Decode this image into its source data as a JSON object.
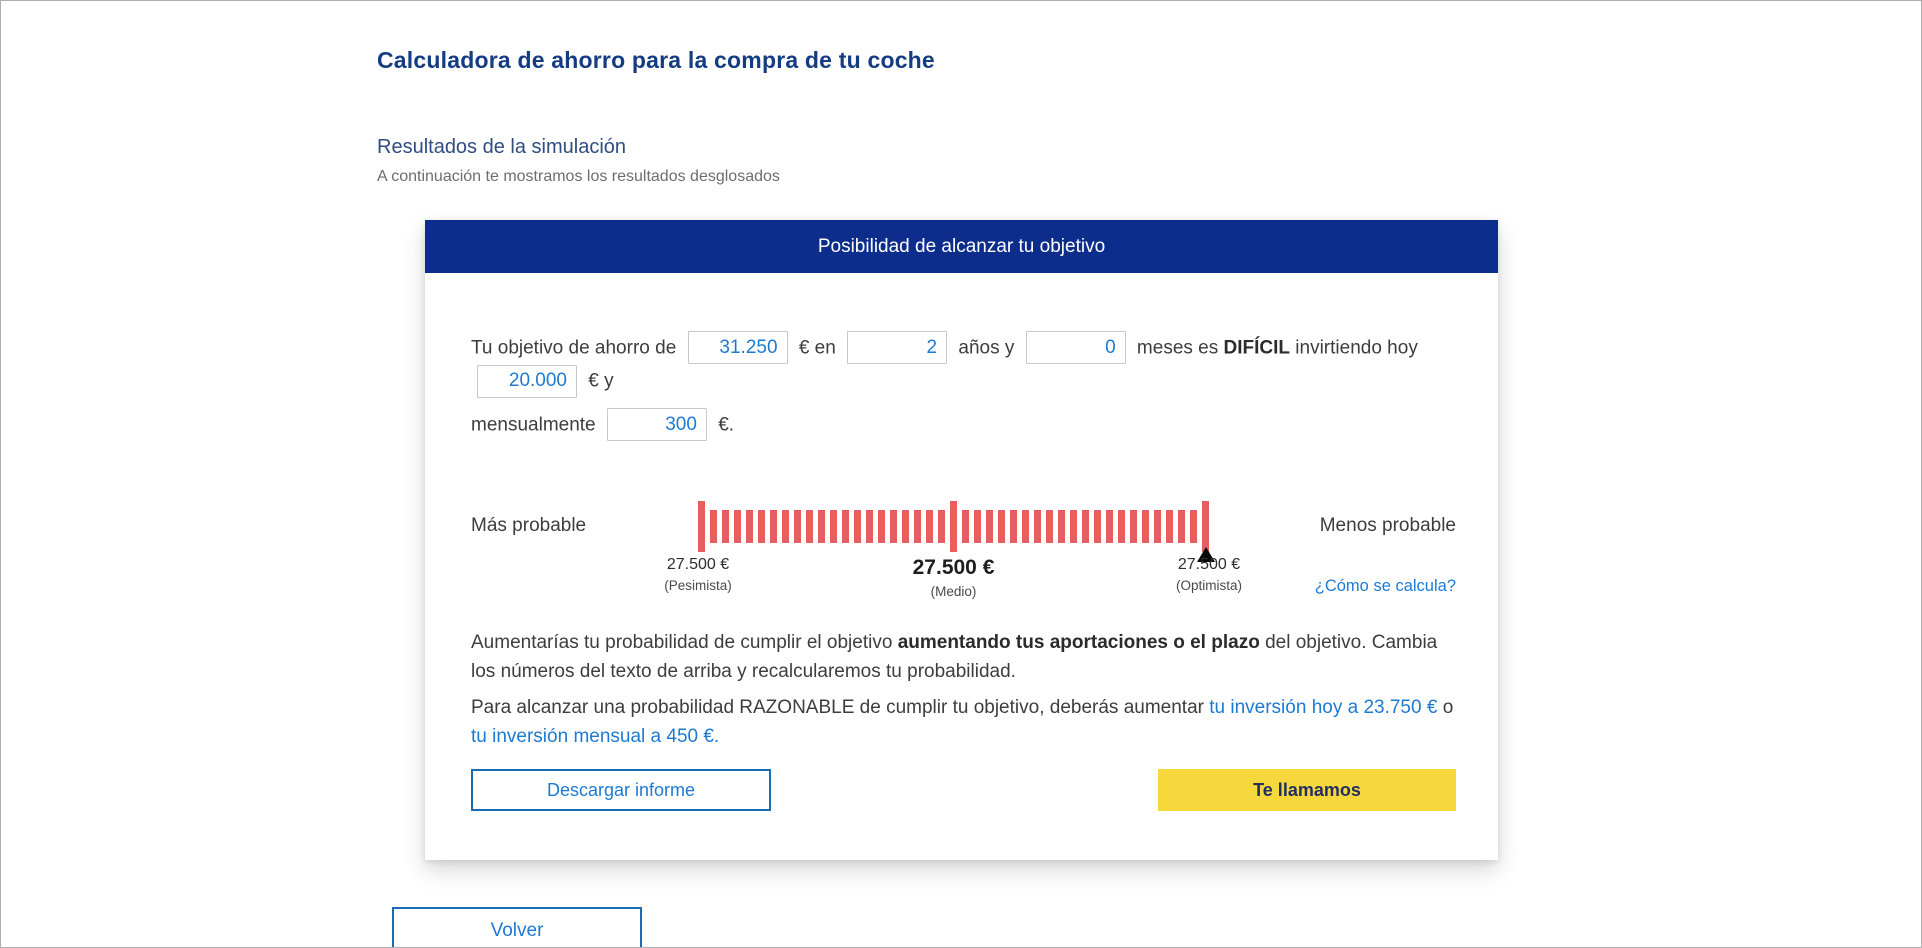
{
  "colors": {
    "header-bg": "#0d2d8c",
    "title-blue": "#143c82",
    "section-blue": "#2f4d80",
    "link-blue": "#1d7ad3",
    "tick-red": "#e85e5e",
    "yellow": "#f6d83c",
    "button-border": "#1a6bb5",
    "yellow-text": "#232f60",
    "body-text": "#3d3d3d",
    "muted-text": "#6d6d6d"
  },
  "page": {
    "title": "Calculadora de ahorro para la compra de tu coche",
    "section_title": "Resultados de la simulación",
    "section_subtitle": "A continuación te mostramos los resultados desglosados",
    "back_button_label": "Volver"
  },
  "card": {
    "header_title": "Posibilidad de alcanzar tu objetivo",
    "sentence": {
      "line1": {
        "t1": "Tu objetivo de ahorro de",
        "goal_value": "31.250",
        "t2": "€ en",
        "years_value": "2",
        "t3": "años y",
        "months_value": "0",
        "t4": "meses es",
        "difficulty": "DIFÍCIL",
        "t5": "invirtiendo hoy",
        "today_value": "20.000",
        "t6": "€ y"
      },
      "line2": {
        "t1": "mensualmente",
        "monthly_value": "300",
        "t2": "€."
      }
    },
    "probability": {
      "left_label": "Más probable",
      "right_label": "Menos probable",
      "ticks": {
        "count": 43,
        "tall_indices": [
          0,
          21,
          42
        ]
      },
      "scenarios": {
        "pessimistic": {
          "value": "27.500 €",
          "label": "(Pesimista)"
        },
        "medium": {
          "value": "27.500 €",
          "label": "(Medio)"
        },
        "optimistic": {
          "value": "27.500 €",
          "label": "(Optimista)"
        }
      }
    },
    "how_link_label": "¿Cómo se calcula?",
    "paragraph1": {
      "t1": "Aumentarías tu probabilidad de cumplir el objetivo ",
      "bold": "aumentando tus aportaciones o el plazo",
      "t2": " del objetivo. Cambia los números del texto de arriba y recalcularemos tu probabilidad."
    },
    "paragraph2": {
      "t1": "Para alcanzar una probabilidad RAZONABLE de cumplir tu objetivo, deberás aumentar ",
      "link1": "tu inversión hoy a 23.750 €",
      "t2": " o ",
      "link2": "tu inversión mensual a 450 €."
    },
    "download_button_label": "Descargar informe",
    "call_button_label": "Te llamamos"
  }
}
